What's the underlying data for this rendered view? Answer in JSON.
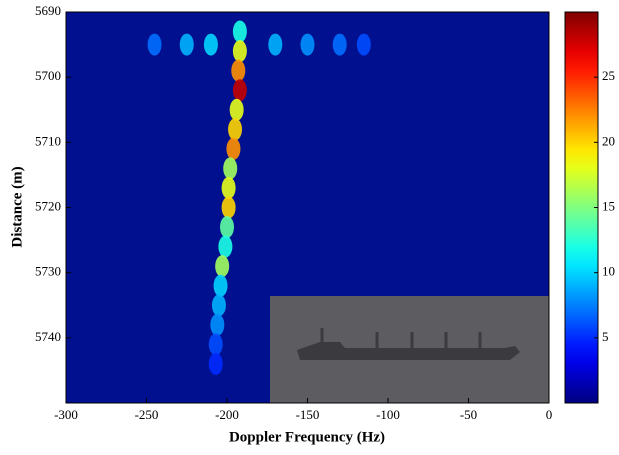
{
  "chart_data": {
    "type": "heatmap",
    "xlabel": "Doppler Frequency (Hz)",
    "ylabel": "Distance (m)",
    "xlim": [
      -300,
      0
    ],
    "xticks": [
      -300,
      -250,
      -200,
      -150,
      -100,
      -50,
      0
    ],
    "ylim": [
      5690,
      5750
    ],
    "yticks": [
      5690,
      5700,
      5710,
      5720,
      5730,
      5740
    ],
    "clim": [
      0,
      30
    ],
    "cticks": [
      5,
      10,
      15,
      20,
      25
    ],
    "colormap": "jet",
    "x": [
      -192,
      -192,
      -193,
      -192,
      -194,
      -195,
      -196,
      -198,
      -199,
      -199,
      -200,
      -201,
      -203,
      -204,
      -205,
      -206,
      -207,
      -207,
      -245,
      -225,
      -210,
      -170,
      -150,
      -130,
      -115
    ],
    "y": [
      5693,
      5696,
      5699,
      5702,
      5705,
      5708,
      5711,
      5714,
      5717,
      5720,
      5723,
      5726,
      5729,
      5732,
      5735,
      5738,
      5741,
      5744,
      5695,
      5695,
      5695,
      5695,
      5695,
      5695,
      5695
    ],
    "values": [
      12,
      18,
      22,
      28,
      18,
      20,
      22,
      16,
      18,
      20,
      14,
      12,
      16,
      10,
      9,
      8,
      6,
      5,
      7,
      9,
      10,
      9,
      8,
      7,
      6
    ]
  }
}
